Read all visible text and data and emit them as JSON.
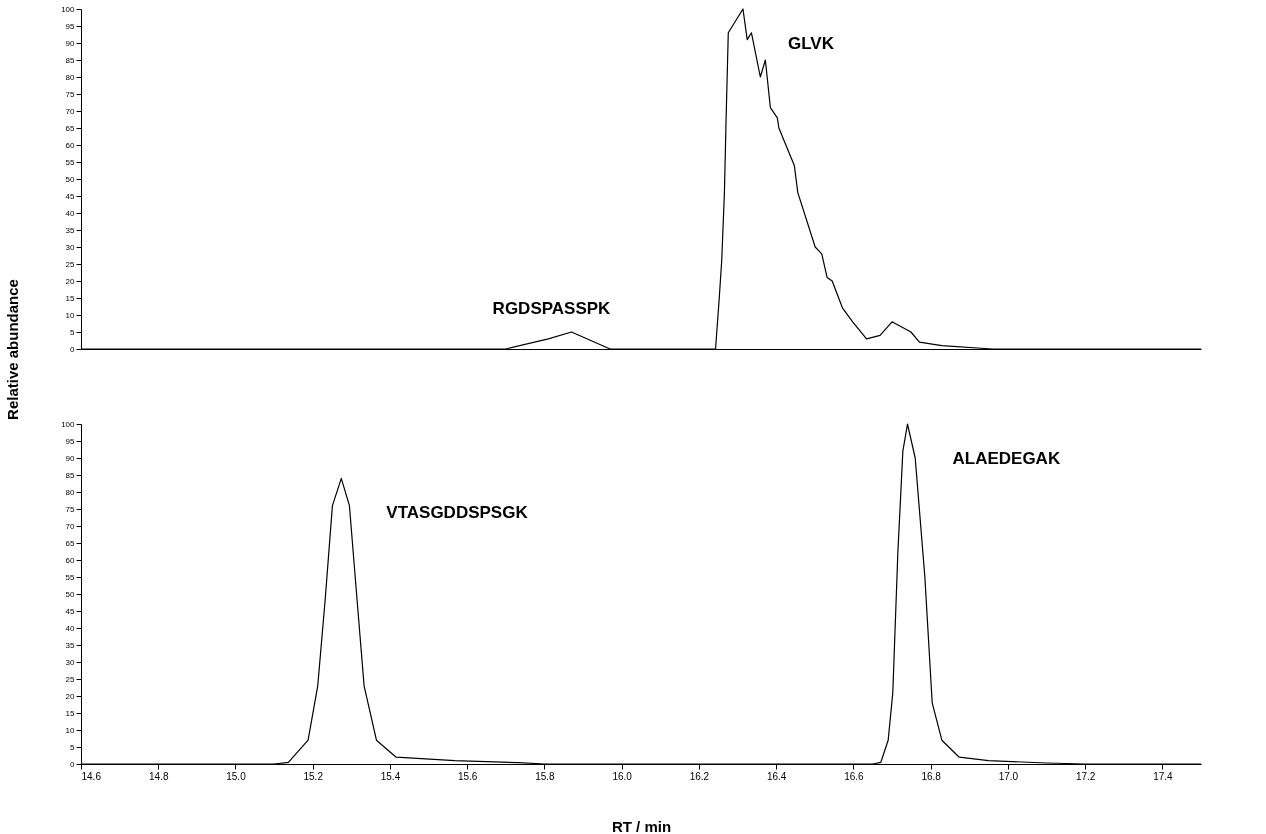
{
  "chart_data": [
    {
      "type": "line",
      "ylabel": "Relative abundance",
      "xlim": [
        14.6,
        17.5
      ],
      "ylim": [
        0,
        100
      ],
      "yticks": [
        0,
        5,
        10,
        15,
        20,
        25,
        30,
        35,
        40,
        45,
        50,
        55,
        60,
        65,
        70,
        75,
        80,
        85,
        90,
        95,
        100
      ],
      "tick_labels": "y",
      "grid": false,
      "annotations": [
        {
          "text": "RGDSPASSPK",
          "x": 15.87,
          "y": 5
        },
        {
          "text": "GLVK",
          "x": 16.314,
          "y": 100
        }
      ],
      "series": [
        {
          "color": "#000000",
          "x": [
            14.6,
            15.7,
            15.81,
            15.87,
            15.97,
            16.03,
            16.243,
            16.252,
            16.259,
            16.266,
            16.27,
            16.276,
            16.314,
            16.325,
            16.336,
            16.359,
            16.372,
            16.385,
            16.403,
            16.407,
            16.447,
            16.456,
            16.501,
            16.518,
            16.532,
            16.545,
            16.572,
            16.598,
            16.634,
            16.669,
            16.7,
            16.749,
            16.771,
            16.829,
            16.96,
            17.5
          ],
          "values": [
            0,
            0,
            3,
            5,
            0,
            0,
            0,
            14,
            26,
            46,
            66,
            93,
            100,
            91,
            93,
            80,
            85,
            71,
            68,
            65,
            54,
            46,
            30,
            28,
            21,
            20,
            12,
            8,
            3,
            4,
            8,
            5,
            2,
            1,
            0,
            0
          ]
        }
      ]
    },
    {
      "type": "line",
      "xlabel": "RT / min",
      "xlim": [
        14.6,
        17.5
      ],
      "xticks": [
        14.6,
        14.8,
        {
          "value": 15,
          "label": "15.0"
        },
        15.2,
        15.4,
        15.6,
        15.8,
        {
          "value": 16,
          "label": "16.0"
        },
        16.2,
        16.4,
        16.6,
        16.8,
        {
          "value": 17,
          "label": "17.0"
        },
        17.2,
        17.4
      ],
      "ylim": [
        0,
        100
      ],
      "yticks": [
        0,
        5,
        10,
        15,
        20,
        25,
        30,
        35,
        40,
        45,
        50,
        55,
        60,
        65,
        70,
        75,
        80,
        85,
        90,
        95,
        100
      ],
      "grid": false,
      "annotations": [
        {
          "text": "VTASGDDSPSGK",
          "x": 15.274,
          "y": 84
        },
        {
          "text": "ALAEDEGAK",
          "x": 16.74,
          "y": 100
        }
      ],
      "series": [
        {
          "color": "#000000",
          "x": [
            14.6,
            15.1,
            15.137,
            15.188,
            15.213,
            15.232,
            15.251,
            15.274,
            15.295,
            15.315,
            15.333,
            15.365,
            15.416,
            15.568,
            15.733,
            15.8,
            16.65,
            16.671,
            16.69,
            16.702,
            16.715,
            16.728,
            16.74,
            16.76,
            16.785,
            16.804,
            16.829,
            16.874,
            16.95,
            17.1,
            17.2,
            17.5
          ],
          "values": [
            0,
            0,
            0.5,
            7,
            23,
            48,
            76,
            84,
            76,
            48,
            23,
            7,
            2,
            1,
            0.4,
            0,
            0,
            0.5,
            7,
            21,
            62,
            92,
            100,
            90,
            55,
            18,
            7,
            2,
            1,
            0.3,
            0,
            0
          ]
        }
      ]
    }
  ]
}
